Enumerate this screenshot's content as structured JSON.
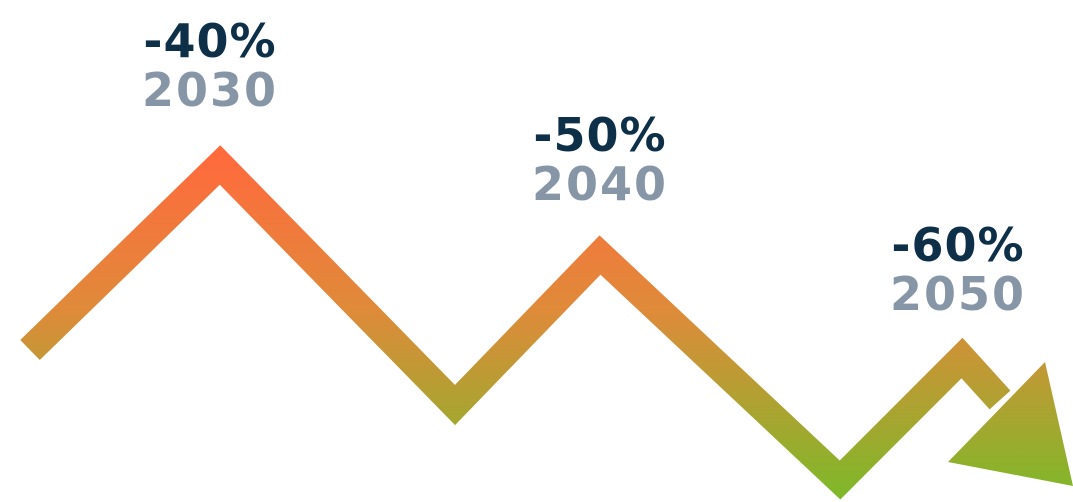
{
  "colors": {
    "percent_text": "#0d2f48",
    "year_text": "#8796a6",
    "line_gradient_top": "#ff6a3d",
    "line_gradient_bottom": "#7fb829"
  },
  "milestones": [
    {
      "percent": "-40%",
      "year": "2030"
    },
    {
      "percent": "-50%",
      "year": "2040"
    },
    {
      "percent": "-60%",
      "year": "2050"
    }
  ],
  "arrow": {
    "direction": "down-right",
    "icon": "trend-down-arrow-icon"
  }
}
